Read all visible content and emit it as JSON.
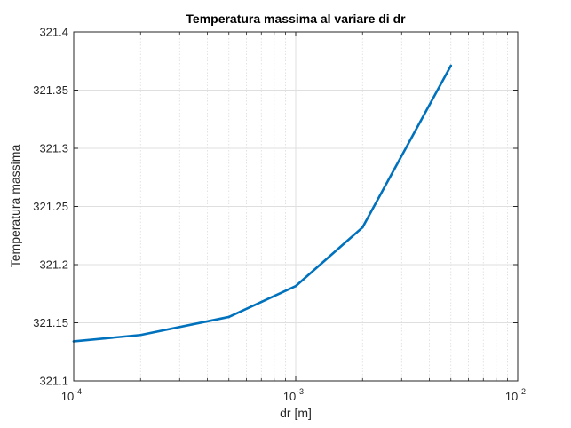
{
  "chart_data": {
    "type": "line",
    "title": "Temperatura massima al variare di dr",
    "xlabel": "dr [m]",
    "ylabel": "Temperatura massima",
    "xscale": "log",
    "xlim": [
      0.0001,
      0.01
    ],
    "ylim": [
      321.1,
      321.4
    ],
    "grid": "on (major and minor)",
    "x_ticks": [
      {
        "base": "10",
        "exp": "-4"
      },
      {
        "base": "10",
        "exp": "-3"
      },
      {
        "base": "10",
        "exp": "-2"
      }
    ],
    "y_ticks": [
      "321.1",
      "321.15",
      "321.2",
      "321.25",
      "321.3",
      "321.35",
      "321.4"
    ],
    "series": [
      {
        "color": "#0072BD",
        "x": [
          0.0001,
          0.0002,
          0.0005,
          0.001,
          0.002,
          0.005
        ],
        "values": [
          321.134,
          321.1395,
          321.155,
          321.1815,
          321.232,
          321.371
        ]
      }
    ]
  }
}
